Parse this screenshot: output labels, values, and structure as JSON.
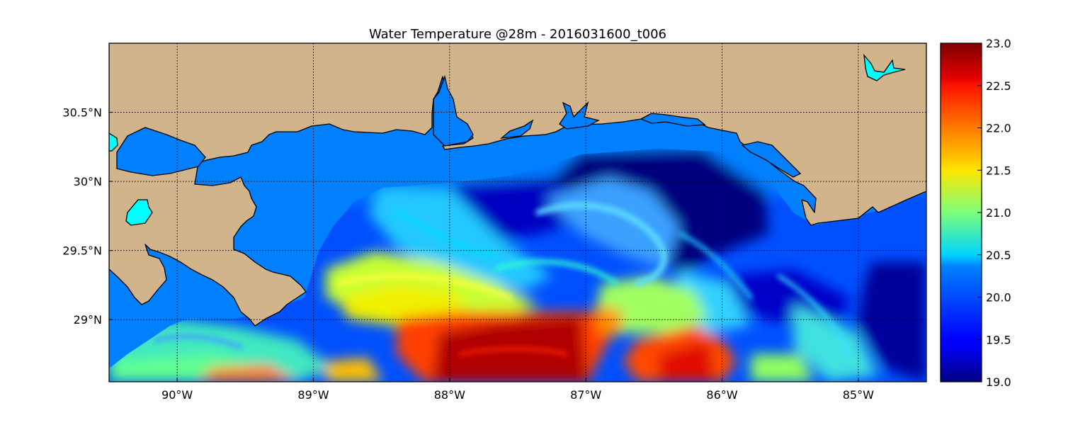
{
  "title": "Water Temperature @28m - 2016031600_t006",
  "map": {
    "lon_range": [
      -90.5,
      -84.5
    ],
    "lat_range": [
      28.55,
      31.0
    ],
    "gridlines": true,
    "x_ticks": [
      {
        "value": -90,
        "label": "90°W"
      },
      {
        "value": -89,
        "label": "89°W"
      },
      {
        "value": -88,
        "label": "88°W"
      },
      {
        "value": -87,
        "label": "87°W"
      },
      {
        "value": -86,
        "label": "86°W"
      },
      {
        "value": -85,
        "label": "85°W"
      }
    ],
    "y_ticks": [
      {
        "value": 30.5,
        "label": "30.5°N"
      },
      {
        "value": 30.0,
        "label": "30°N"
      },
      {
        "value": 29.5,
        "label": "29.5°N"
      },
      {
        "value": 29.0,
        "label": "29°N"
      }
    ],
    "colors": {
      "land": "#d2b48c",
      "inland_water": "#00ffff",
      "shelf_water": "#0080ff",
      "outline": "#000000"
    }
  },
  "colorbar": {
    "colormap": "jet",
    "min": 19.0,
    "max": 23.0,
    "ticks": [
      {
        "value": 23.0,
        "label": "23.0"
      },
      {
        "value": 22.5,
        "label": "22.5"
      },
      {
        "value": 22.0,
        "label": "22.0"
      },
      {
        "value": 21.5,
        "label": "21.5"
      },
      {
        "value": 21.0,
        "label": "21.0"
      },
      {
        "value": 20.5,
        "label": "20.5"
      },
      {
        "value": 20.0,
        "label": "20.0"
      },
      {
        "value": 19.5,
        "label": "19.5"
      },
      {
        "value": 19.0,
        "label": "19.0"
      }
    ]
  }
}
